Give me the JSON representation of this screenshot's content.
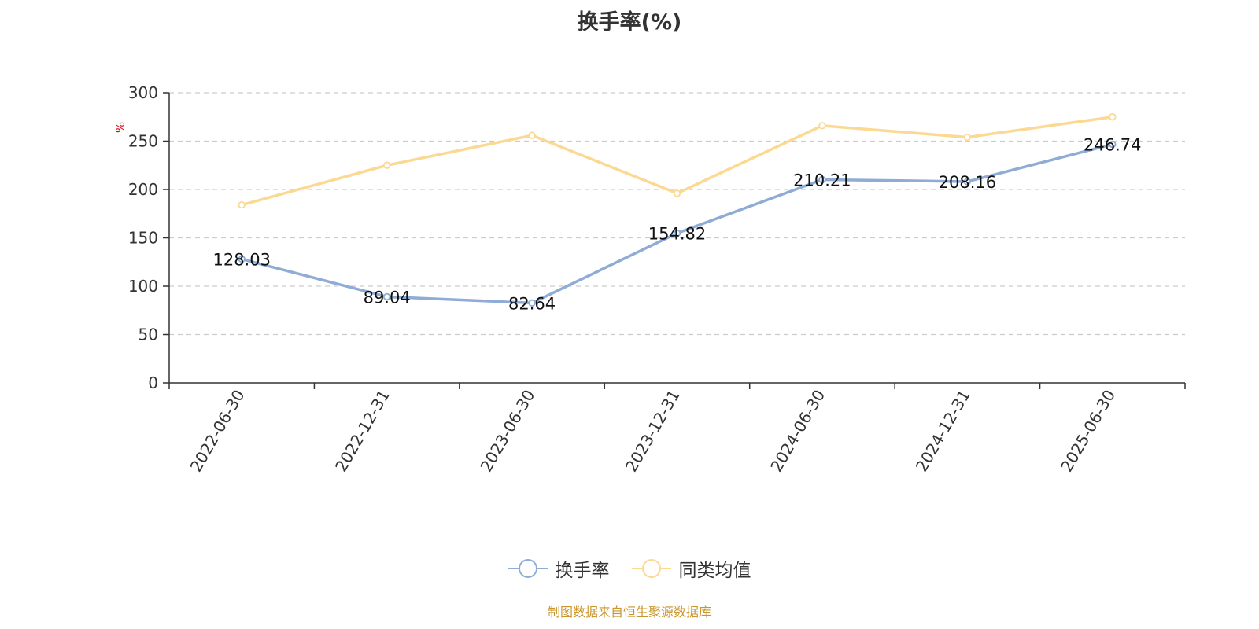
{
  "chart_data": {
    "type": "line",
    "title": "换手率(%)",
    "ylabel": "%",
    "xlabel": "",
    "ylim": [
      0,
      300
    ],
    "yticks": [
      0,
      50,
      100,
      150,
      200,
      250,
      300
    ],
    "grid": true,
    "legend_position": "bottom",
    "categories": [
      "2022-06-30",
      "2022-12-31",
      "2023-06-30",
      "2023-12-31",
      "2024-06-30",
      "2024-12-31",
      "2025-06-30"
    ],
    "series": [
      {
        "name": "换手率",
        "color": "#8eacd6",
        "values": [
          128.03,
          89.04,
          82.64,
          154.82,
          210.21,
          208.16,
          246.74
        ],
        "show_labels": true
      },
      {
        "name": "同类均值",
        "color": "#fbd993",
        "values": [
          184,
          225,
          256,
          196,
          266,
          254,
          275
        ],
        "show_labels": false
      }
    ]
  },
  "source": "制图数据来自恒生聚源数据库"
}
